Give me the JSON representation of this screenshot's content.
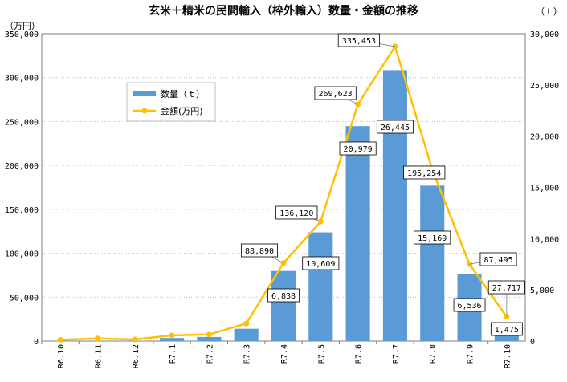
{
  "chart_data": {
    "type": "bar+line",
    "title": "玄米＋精米の民間輸入（枠外輸入）数量・金額の推移",
    "left_unit": "（万円）",
    "right_unit": "（ｔ）",
    "categories": [
      "R6.10",
      "R6.11",
      "R6.12",
      "R7.1",
      "R7.2",
      "R7.3",
      "R7.4",
      "R7.5",
      "R7.6",
      "R7.7",
      "R7.8",
      "R7.9",
      "R7.10"
    ],
    "left_axis": {
      "min": 0,
      "max": 350000,
      "step": 50000,
      "series": "金額(万円)"
    },
    "right_axis": {
      "min": 0,
      "max": 30000,
      "step": 5000,
      "series": "数量（ｔ）"
    },
    "left_ticks": [
      "0",
      "50,000",
      "100,000",
      "150,000",
      "200,000",
      "250,000",
      "300,000",
      "350,000"
    ],
    "right_ticks": [
      "0",
      "5,000",
      "10,000",
      "15,000",
      "20,000",
      "25,000",
      "30,000"
    ],
    "series": [
      {
        "name": "数量（ｔ）",
        "kind": "bar",
        "axis": "right",
        "color": "#5b9bd5",
        "values": [
          10,
          20,
          10,
          300,
          400,
          1200,
          6838,
          10609,
          20979,
          26445,
          15169,
          6536,
          1475
        ],
        "labels": [
          "",
          "",
          "",
          "",
          "",
          "",
          "6,838",
          "10,609",
          "20,979",
          "26,445",
          "15,169",
          "6,536",
          "1,475"
        ]
      },
      {
        "name": "金額(万円)",
        "kind": "line",
        "axis": "left",
        "color": "#ffc000",
        "values": [
          1500,
          3000,
          1800,
          6500,
          7500,
          20000,
          88890,
          136120,
          269623,
          335453,
          195254,
          87495,
          27717
        ],
        "labels": [
          "",
          "",
          "",
          "",
          "",
          "",
          "88,890",
          "136,120",
          "269,623",
          "335,453",
          "195,254",
          "87,495",
          "27,717"
        ]
      }
    ],
    "legend": {
      "position": "upper-left",
      "items": [
        "数量（ｔ）",
        "金額(万円)"
      ]
    }
  }
}
